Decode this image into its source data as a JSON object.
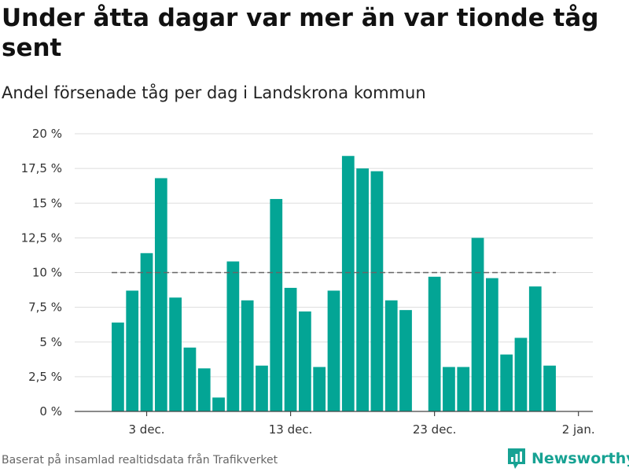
{
  "title": "Under åtta dagar var mer än var tionde tåg sent",
  "subtitle": "Andel försenade tåg per dag i Landskrona kommun",
  "source": "Baserat på insamlad realtidsdata från Trafikverket",
  "brand": {
    "name": "Newsworthy",
    "icon": "newsworthy-logo-icon",
    "color": "#17a293"
  },
  "chart_data": {
    "type": "bar",
    "title": "Under åtta dagar var mer än var tionde tåg sent",
    "subtitle": "Andel försenade tåg per dag i Landskrona kommun",
    "xlabel": "",
    "ylabel": "",
    "bar_color": "#03a595",
    "grid": true,
    "legend": "none",
    "ylim": [
      0,
      20
    ],
    "xlim": [
      "2019-11-28",
      "2020-01-03"
    ],
    "y_ticks": [
      {
        "value": 0,
        "label": "0 %"
      },
      {
        "value": 2.5,
        "label": "2,5 %"
      },
      {
        "value": 5,
        "label": "5 %"
      },
      {
        "value": 7.5,
        "label": "7,5 %"
      },
      {
        "value": 10,
        "label": "10 %"
      },
      {
        "value": 12.5,
        "label": "12,5 %"
      },
      {
        "value": 15,
        "label": "15 %"
      },
      {
        "value": 17.5,
        "label": "17,5 %"
      },
      {
        "value": 20,
        "label": "20 %"
      }
    ],
    "x_ticks": [
      {
        "date": "2019-12-03",
        "label": "3 dec."
      },
      {
        "date": "2019-12-13",
        "label": "13 dec."
      },
      {
        "date": "2019-12-23",
        "label": "23 dec."
      },
      {
        "date": "2020-01-02",
        "label": "2 jan."
      }
    ],
    "reference_line": {
      "value": 10,
      "style": "dashed",
      "color": "#666666",
      "from": "2019-12-01",
      "to": "2019-12-31"
    },
    "dates": [
      "2019-12-01",
      "2019-12-02",
      "2019-12-03",
      "2019-12-04",
      "2019-12-05",
      "2019-12-06",
      "2019-12-07",
      "2019-12-08",
      "2019-12-09",
      "2019-12-10",
      "2019-12-11",
      "2019-12-12",
      "2019-12-13",
      "2019-12-14",
      "2019-12-15",
      "2019-12-16",
      "2019-12-17",
      "2019-12-18",
      "2019-12-19",
      "2019-12-20",
      "2019-12-21",
      "2019-12-22",
      "2019-12-23",
      "2019-12-24",
      "2019-12-25",
      "2019-12-26",
      "2019-12-27",
      "2019-12-28",
      "2019-12-29",
      "2019-12-30",
      "2019-12-31"
    ],
    "values": [
      6.4,
      8.7,
      11.4,
      16.8,
      8.2,
      4.6,
      3.1,
      1.0,
      10.8,
      8.0,
      3.3,
      15.3,
      8.9,
      7.2,
      3.2,
      8.7,
      18.4,
      17.5,
      17.3,
      8.0,
      7.3,
      null,
      9.7,
      3.2,
      3.2,
      12.5,
      9.6,
      4.1,
      5.3,
      9.0,
      3.3
    ]
  }
}
